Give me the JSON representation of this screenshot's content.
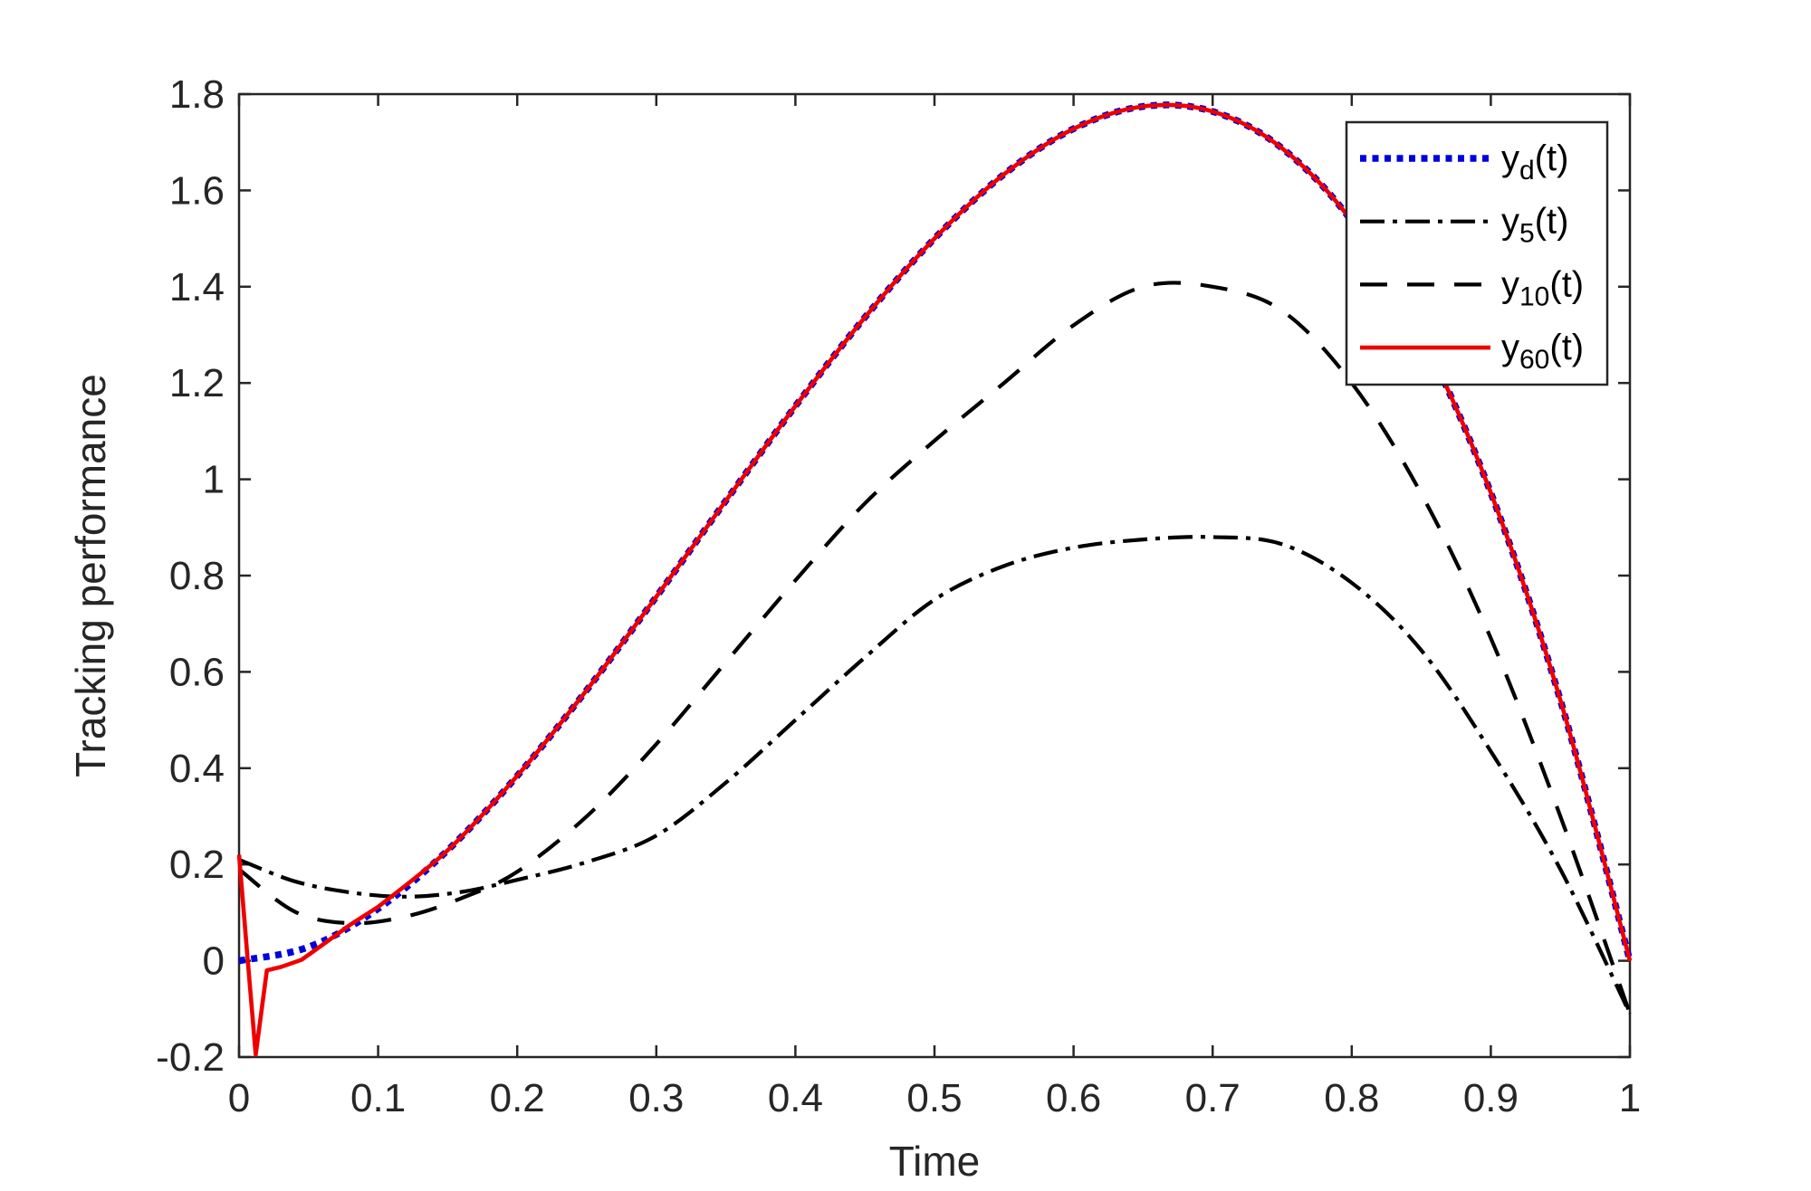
{
  "chart_data": {
    "type": "line",
    "title": "",
    "xlabel": "Time",
    "ylabel": "Tracking performance",
    "xlim": [
      0,
      1
    ],
    "ylim": [
      -0.2,
      1.8
    ],
    "grid": false,
    "background": "#FFFFFF",
    "axis_color": "#262626",
    "text_color": "#262626",
    "legend_text_color": "#000000",
    "legend_position": "top-right",
    "xticks": {
      "values": [
        0,
        0.1,
        0.2,
        0.3,
        0.4,
        0.5,
        0.6,
        0.7,
        0.8,
        0.9,
        1
      ],
      "labels": [
        "0",
        "0.1",
        "0.2",
        "0.3",
        "0.4",
        "0.5",
        "0.6",
        "0.7",
        "0.8",
        "0.9",
        "1"
      ]
    },
    "yticks": {
      "values": [
        -0.2,
        0,
        0.2,
        0.4,
        0.6,
        0.8,
        1,
        1.2,
        1.4,
        1.6,
        1.8
      ],
      "labels": [
        "-0.2",
        "0",
        "0.2",
        "0.4",
        "0.6",
        "0.8",
        "1",
        "1.2",
        "1.4",
        "1.6",
        "1.8"
      ]
    },
    "series": [
      {
        "id": "yd",
        "name": "y_d(t)",
        "label_base": "y",
        "label_sub": "d",
        "label_suffix": "(t)",
        "color": "#0000DD",
        "style": "dotted",
        "line_width": 7.5,
        "dash": "7 6.5",
        "smooth_from": 0,
        "x": [
          0,
          0.05,
          0.1,
          0.15,
          0.2,
          0.25,
          0.3,
          0.35,
          0.4,
          0.45,
          0.5,
          0.55,
          0.6,
          0.65,
          0.7,
          0.75,
          0.8,
          0.85,
          0.9,
          0.95,
          1
        ],
        "y": [
          0,
          0.0285,
          0.108,
          0.2295,
          0.384,
          0.5625,
          0.756,
          0.9555,
          1.152,
          1.3365,
          1.5,
          1.6335,
          1.728,
          1.7745,
          1.764,
          1.6875,
          1.536,
          1.3005,
          0.972,
          0.5415,
          0
        ]
      },
      {
        "id": "y5",
        "name": "y_5(t)",
        "label_base": "y",
        "label_sub": "5",
        "label_suffix": "(t)",
        "color": "#000000",
        "style": "dash-dot",
        "line_width": 4.2,
        "dash": "27 9 5 9",
        "smooth_from": 0,
        "x": [
          0,
          0.04,
          0.08,
          0.12,
          0.16,
          0.2,
          0.25,
          0.3,
          0.35,
          0.4,
          0.45,
          0.5,
          0.55,
          0.6,
          0.65,
          0.7,
          0.75,
          0.8,
          0.85,
          0.9,
          0.95,
          1
        ],
        "y": [
          0.21,
          0.165,
          0.142,
          0.133,
          0.143,
          0.168,
          0.205,
          0.26,
          0.37,
          0.5,
          0.63,
          0.75,
          0.82,
          0.858,
          0.875,
          0.88,
          0.865,
          0.785,
          0.645,
          0.435,
          0.19,
          -0.11
        ]
      },
      {
        "id": "y10",
        "name": "y_10(t)",
        "label_base": "y",
        "label_sub": "10",
        "label_suffix": "(t)",
        "color": "#000000",
        "style": "dashed",
        "line_width": 4.2,
        "dash": "30 22",
        "smooth_from": 0,
        "x": [
          0,
          0.04,
          0.08,
          0.12,
          0.16,
          0.2,
          0.25,
          0.3,
          0.35,
          0.4,
          0.45,
          0.5,
          0.55,
          0.6,
          0.65,
          0.7,
          0.75,
          0.8,
          0.85,
          0.9,
          0.95,
          1
        ],
        "y": [
          0.19,
          0.102,
          0.078,
          0.092,
          0.13,
          0.185,
          0.3,
          0.45,
          0.62,
          0.79,
          0.95,
          1.08,
          1.2,
          1.32,
          1.4,
          1.4,
          1.35,
          1.2,
          0.97,
          0.67,
          0.3,
          -0.11
        ]
      },
      {
        "id": "y60",
        "name": "y_60(t)",
        "label_base": "y",
        "label_sub": "60",
        "label_suffix": "(t)",
        "color": "#EE0000",
        "style": "solid",
        "line_width": 4.6,
        "dash": "",
        "smooth_from": 8,
        "x": [
          0,
          0.006,
          0.012,
          0.02,
          0.03,
          0.045,
          0.06,
          0.08,
          0.1,
          0.15,
          0.2,
          0.25,
          0.3,
          0.35,
          0.4,
          0.45,
          0.5,
          0.55,
          0.6,
          0.65,
          0.7,
          0.75,
          0.8,
          0.85,
          0.9,
          0.95,
          1
        ],
        "y": [
          0.22,
          0.01,
          -0.195,
          -0.02,
          -0.013,
          0.002,
          0.033,
          0.075,
          0.112,
          0.2295,
          0.384,
          0.5625,
          0.756,
          0.9555,
          1.152,
          1.3365,
          1.5,
          1.6335,
          1.728,
          1.7745,
          1.764,
          1.6875,
          1.536,
          1.3005,
          0.972,
          0.5415,
          0
        ]
      }
    ]
  }
}
